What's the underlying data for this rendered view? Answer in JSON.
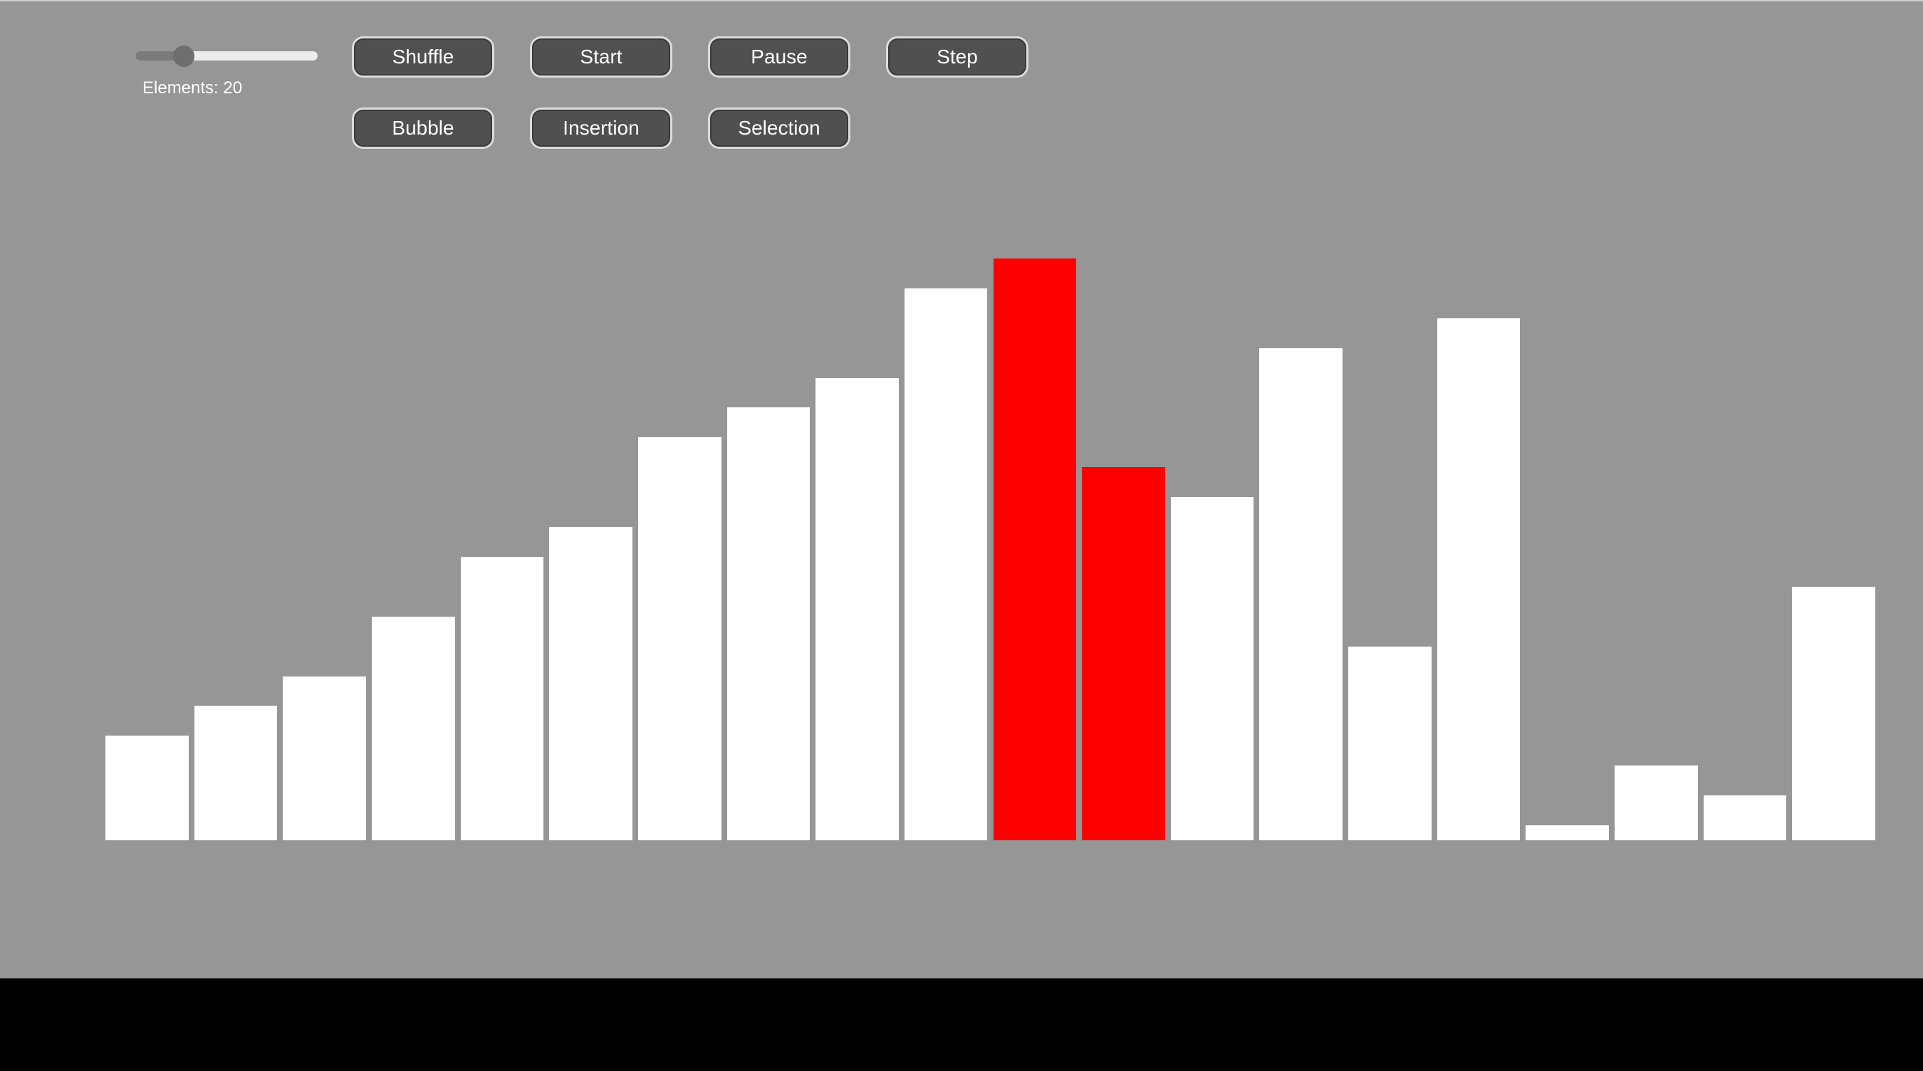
{
  "slider": {
    "min": 1,
    "max": 100,
    "value": 20
  },
  "elements_label": "Elements: 20",
  "buttons": {
    "shuffle": "Shuffle",
    "start": "Start",
    "pause": "Pause",
    "step": "Step",
    "bubble": "Bubble",
    "insertion": "Insertion",
    "selection": "Selection"
  },
  "colors": {
    "background": "#969696",
    "bar": "#ffffff",
    "highlight": "#ff0000",
    "button": "#505050"
  },
  "chart_data": {
    "type": "bar",
    "values": [
      3.5,
      4.5,
      5.5,
      7.5,
      9.5,
      10.5,
      13.5,
      14.5,
      15.5,
      18.5,
      19.5,
      12.5,
      11.5,
      16.5,
      6.5,
      17.5,
      0.5,
      2.5,
      1.5,
      8.5
    ],
    "highlighted_indices": [
      10,
      11
    ],
    "ylim": [
      0,
      20
    ]
  }
}
